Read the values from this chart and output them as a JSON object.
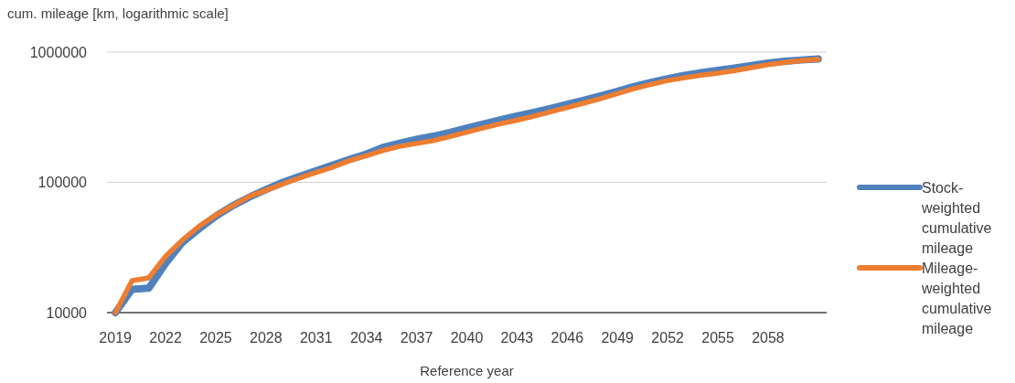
{
  "chart_data": {
    "type": "line",
    "ylabel": "cum. mileage [km, logarithmic scale]",
    "xlabel": "Reference year",
    "log": "y",
    "grid": "y",
    "legend": "right",
    "line_style": "solid",
    "marker": "none",
    "x": [
      2019,
      2020,
      2021,
      2022,
      2023,
      2024,
      2025,
      2026,
      2027,
      2028,
      2029,
      2030,
      2031,
      2032,
      2033,
      2034,
      2035,
      2036,
      2037,
      2038,
      2039,
      2040,
      2041,
      2042,
      2043,
      2044,
      2045,
      2046,
      2047,
      2048,
      2049,
      2050,
      2051,
      2052,
      2053,
      2054,
      2055,
      2056,
      2057,
      2058,
      2059,
      2060,
      2061
    ],
    "xlim": [
      2018.5,
      2061.5
    ],
    "xticks": [
      2019,
      2022,
      2025,
      2028,
      2031,
      2034,
      2037,
      2040,
      2043,
      2046,
      2049,
      2052,
      2055,
      2058
    ],
    "ylim": [
      10000,
      1000000
    ],
    "yticks": [
      10000,
      100000,
      1000000
    ],
    "series": [
      {
        "name": "Stock-weighted cumulative mileage",
        "color": "#4f81bd",
        "values": [
          10000,
          15100,
          15400,
          23800,
          34500,
          44000,
          55000,
          66000,
          77000,
          88000,
          100000,
          111000,
          123000,
          136000,
          150000,
          165000,
          186000,
          200000,
          214000,
          226000,
          242000,
          261000,
          281000,
          302000,
          323000,
          345000,
          370000,
          398000,
          428000,
          462000,
          500000,
          545000,
          585000,
          625000,
          662000,
          695000,
          725000,
          755000,
          790000,
          825000,
          852000,
          870000,
          885000
        ]
      },
      {
        "name": "Mileage-weighted cumulative mileage",
        "color": "#ed7d31",
        "values": [
          10000,
          17600,
          18500,
          27000,
          36000,
          46000,
          56000,
          66000,
          78000,
          87000,
          97000,
          108000,
          119000,
          131000,
          147000,
          160000,
          176000,
          189000,
          199000,
          209000,
          225000,
          243000,
          262000,
          282000,
          300000,
          322000,
          348000,
          376000,
          406000,
          440000,
          480000,
          525000,
          565000,
          605000,
          635000,
          665000,
          690000,
          720000,
          760000,
          800000,
          835000,
          860000,
          879000
        ]
      }
    ]
  }
}
